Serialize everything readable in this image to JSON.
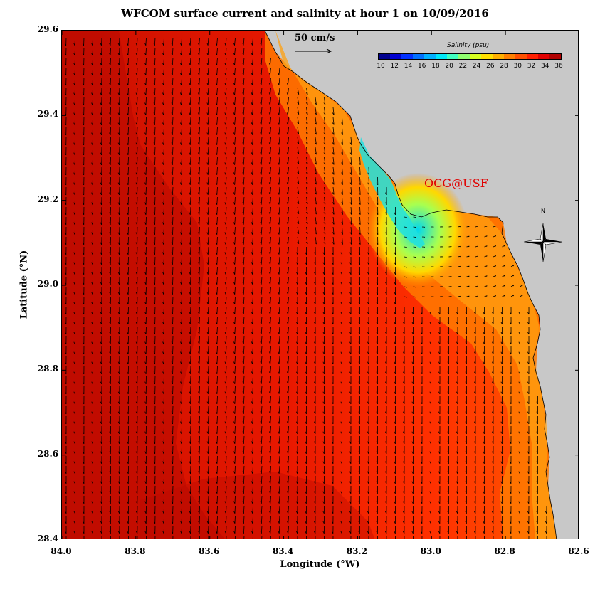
{
  "title": "WFCOM surface current and salinity at hour 1 on 10/09/2016",
  "xlabel": "Longitude (°W)",
  "ylabel": "Latitude (°N)",
  "x_ticks": [
    "84.0",
    "83.8",
    "83.6",
    "83.4",
    "83.2",
    "83.0",
    "82.8",
    "82.6"
  ],
  "y_ticks": [
    "29.6",
    "29.4",
    "29.2",
    "29.0",
    "28.8",
    "28.6",
    "28.4"
  ],
  "scale_arrow_label": "50 cm/s",
  "colorbar": {
    "title": "Salinity (psu)",
    "ticks": [
      "10",
      "12",
      "14",
      "16",
      "18",
      "20",
      "22",
      "24",
      "26",
      "28",
      "30",
      "32",
      "34",
      "36"
    ],
    "colors": [
      "#00008f",
      "#0000d0",
      "#0030ff",
      "#0070ff",
      "#00b0ff",
      "#00e8f8",
      "#40ffc0",
      "#90ff70",
      "#d8ff20",
      "#ffe000",
      "#ffb000",
      "#ff8000",
      "#ff5000",
      "#ff2000",
      "#e00000",
      "#b00000"
    ]
  },
  "watermark": "OCG@USF",
  "north_label": "N",
  "colors": {
    "land": "#c8c8c8",
    "high_salinity": "#d01000",
    "mid_salinity": "#ff8a00",
    "low_salinity": "#00d8f0"
  }
}
